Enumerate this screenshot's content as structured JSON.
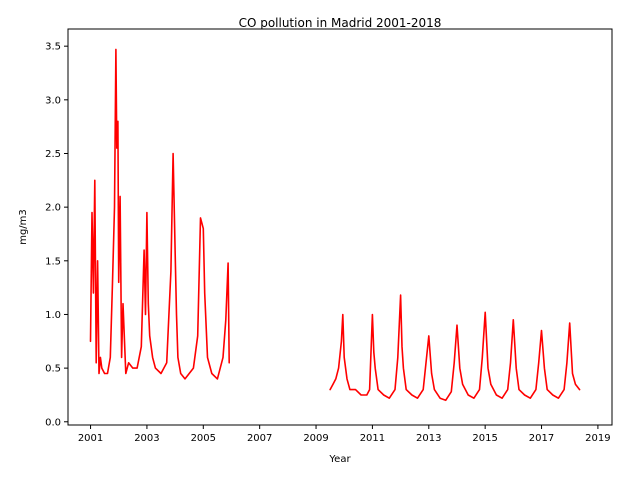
{
  "chart_data": {
    "type": "line",
    "title": "CO pollution in Madrid 2001-2018",
    "xlabel": "Year",
    "ylabel": "mg/m3",
    "xlim": [
      2000.2,
      2019.5
    ],
    "ylim": [
      -0.03,
      3.66
    ],
    "x_ticks": [
      2001,
      2003,
      2005,
      2007,
      2009,
      2011,
      2013,
      2015,
      2017,
      2019
    ],
    "x_tick_labels": [
      "2001",
      "2003",
      "2005",
      "2007",
      "2009",
      "2011",
      "2013",
      "2015",
      "2017",
      "2019"
    ],
    "y_ticks": [
      0.0,
      0.5,
      1.0,
      1.5,
      2.0,
      2.5,
      3.0,
      3.5
    ],
    "y_tick_labels": [
      "0.0",
      "0.5",
      "1.0",
      "1.5",
      "2.0",
      "2.5",
      "3.0",
      "3.5"
    ],
    "grid": false,
    "series": [
      {
        "color": "#ff0000",
        "segments": [
          {
            "x": [
              2001.0,
              2001.05,
              2001.1,
              2001.15,
              2001.2,
              2001.25,
              2001.3,
              2001.35,
              2001.4,
              2001.5,
              2001.6,
              2001.7,
              2001.78,
              2001.85,
              2001.9,
              2001.93,
              2001.97,
              2002.0,
              2002.05,
              2002.1,
              2002.15,
              2002.25,
              2002.35,
              2002.5,
              2002.65,
              2002.8,
              2002.9,
              2002.95,
              2003.0,
              2003.05,
              2003.1,
              2003.2,
              2003.3,
              2003.5,
              2003.7,
              2003.85,
              2003.93,
              2004.0,
              2004.05,
              2004.1,
              2004.2,
              2004.35,
              2004.5,
              2004.65,
              2004.8,
              2004.9,
              2005.0,
              2005.05,
              2005.15,
              2005.3,
              2005.5,
              2005.7,
              2005.8,
              2005.88,
              2005.92
            ],
            "y": [
              0.75,
              1.95,
              1.2,
              2.25,
              0.55,
              1.5,
              0.45,
              0.6,
              0.5,
              0.45,
              0.45,
              0.6,
              1.3,
              2.0,
              3.47,
              2.55,
              2.8,
              1.3,
              2.1,
              0.6,
              1.1,
              0.45,
              0.55,
              0.5,
              0.5,
              0.7,
              1.6,
              1.0,
              1.95,
              1.1,
              0.8,
              0.6,
              0.5,
              0.45,
              0.55,
              1.4,
              2.5,
              1.6,
              1.0,
              0.6,
              0.45,
              0.4,
              0.45,
              0.5,
              0.8,
              1.9,
              1.8,
              1.2,
              0.6,
              0.45,
              0.4,
              0.6,
              0.95,
              1.48,
              0.55
            ]
          },
          {
            "x": [
              2009.5,
              2009.6,
              2009.7,
              2009.8,
              2009.9,
              2009.95,
              2010.0,
              2010.1,
              2010.2,
              2010.4,
              2010.6,
              2010.8,
              2010.9,
              2011.0,
              2011.05,
              2011.1,
              2011.2,
              2011.4,
              2011.6,
              2011.8,
              2011.9,
              2012.0,
              2012.05,
              2012.1,
              2012.2,
              2012.4,
              2012.6,
              2012.8,
              2012.9,
              2013.0,
              2013.1,
              2013.2,
              2013.4,
              2013.6,
              2013.8,
              2013.9,
              2014.0,
              2014.1,
              2014.2,
              2014.4,
              2014.6,
              2014.8,
              2014.9,
              2015.0,
              2015.1,
              2015.2,
              2015.4,
              2015.6,
              2015.8,
              2015.9,
              2016.0,
              2016.1,
              2016.2,
              2016.4,
              2016.6,
              2016.8,
              2016.9,
              2017.0,
              2017.1,
              2017.2,
              2017.4,
              2017.6,
              2017.8,
              2017.9,
              2018.0,
              2018.1,
              2018.2,
              2018.35
            ],
            "y": [
              0.3,
              0.35,
              0.4,
              0.5,
              0.75,
              1.0,
              0.6,
              0.4,
              0.3,
              0.3,
              0.25,
              0.25,
              0.3,
              1.0,
              0.65,
              0.5,
              0.3,
              0.25,
              0.22,
              0.3,
              0.6,
              1.18,
              0.7,
              0.5,
              0.3,
              0.25,
              0.22,
              0.3,
              0.55,
              0.8,
              0.45,
              0.3,
              0.22,
              0.2,
              0.28,
              0.55,
              0.9,
              0.5,
              0.35,
              0.25,
              0.22,
              0.3,
              0.6,
              1.02,
              0.5,
              0.35,
              0.25,
              0.22,
              0.3,
              0.55,
              0.95,
              0.5,
              0.3,
              0.25,
              0.22,
              0.3,
              0.55,
              0.85,
              0.5,
              0.3,
              0.25,
              0.22,
              0.3,
              0.55,
              0.92,
              0.45,
              0.35,
              0.3
            ]
          }
        ]
      }
    ]
  }
}
